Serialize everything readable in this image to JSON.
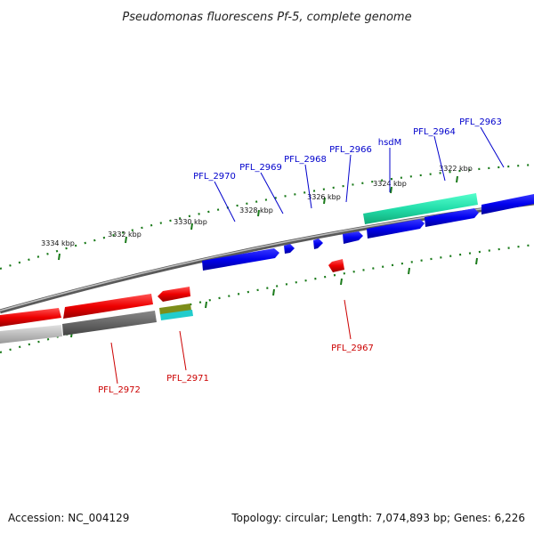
{
  "title": "Pseudomonas fluorescens Pf-5, complete genome",
  "footer": {
    "accession": "Accession: NC_004129",
    "summary": "Topology: circular; Length: 7,074,893 bp; Genes: 6,226"
  },
  "tick_labels": [
    "3334 kbp",
    "3332 kbp",
    "3330 kbp",
    "3328 kbp",
    "3326 kbp",
    "3324 kbp",
    "3322 kbp"
  ],
  "genes_forward": [
    "PFL_2970",
    "PFL_2969",
    "PFL_2968",
    "PFL_2966",
    "hsdM",
    "PFL_2964",
    "PFL_2963"
  ],
  "genes_reverse": [
    "PFL_2972",
    "PFL_2971",
    "PFL_2967"
  ],
  "colors": {
    "forward_cds": "#0000ee",
    "reverse_cds": "#ee0000",
    "rna_feature": "#22ddaa",
    "backbone": "#777777",
    "tick": "#1a7a1a",
    "forward_label": "#0000cc",
    "reverse_label": "#cc0000"
  }
}
